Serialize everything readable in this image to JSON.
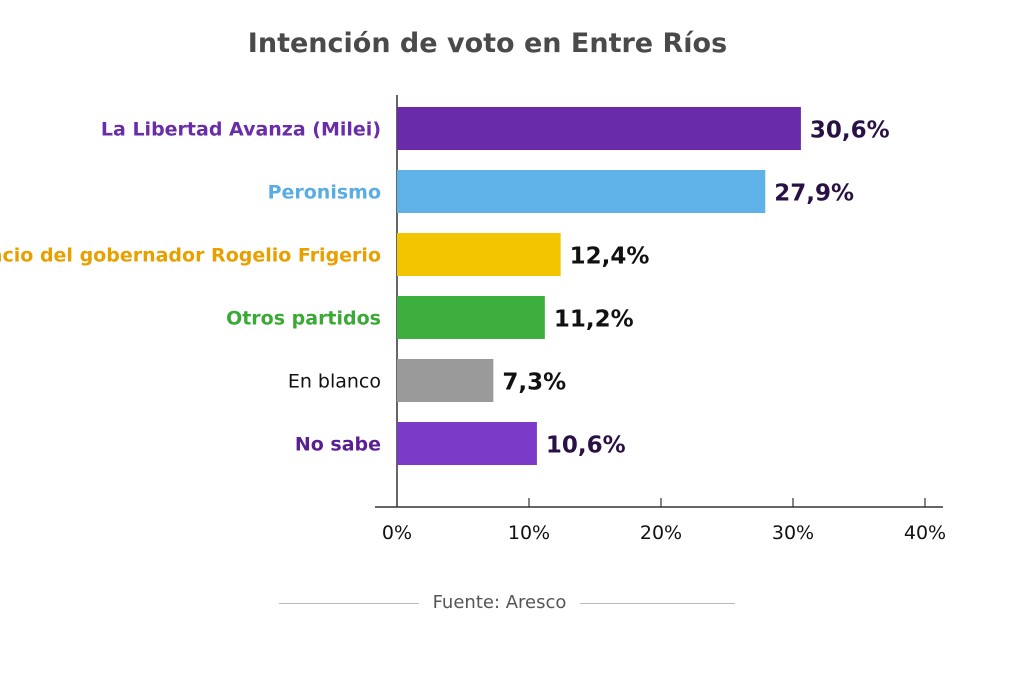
{
  "chart_data": {
    "type": "bar",
    "orientation": "horizontal",
    "title": "Intención de voto en Entre Ríos",
    "categories": [
      "La Libertad Avanza (Milei)",
      "Peronismo",
      "Espacio del gobernador Rogelio Frigerio",
      "Otros partidos",
      "En blanco",
      "No sabe"
    ],
    "values": [
      30.6,
      27.9,
      12.4,
      11.2,
      7.3,
      10.6
    ],
    "value_labels": [
      "30,6%",
      "27,9%",
      "12,4%",
      "11,2%",
      "7,3%",
      "10,6%"
    ],
    "bar_colors": [
      "#6a2bab",
      "#5fb2e8",
      "#f2c500",
      "#3daf3e",
      "#9a9a9a",
      "#7b3ac7"
    ],
    "label_colors": [
      "#6a2da8",
      "#5aade3",
      "#e8a000",
      "#3aa935",
      "#111111",
      "#5a2093"
    ],
    "value_colors": [
      "#2a1145",
      "#2a1145",
      "#111111",
      "#111111",
      "#111111",
      "#2a1145"
    ],
    "xlim": [
      0,
      40
    ],
    "xticks": [
      0,
      10,
      20,
      30,
      40
    ],
    "xtick_labels": [
      "0%",
      "10%",
      "20%",
      "30%",
      "40%"
    ],
    "grid": false,
    "source": "Fuente: Aresco"
  }
}
